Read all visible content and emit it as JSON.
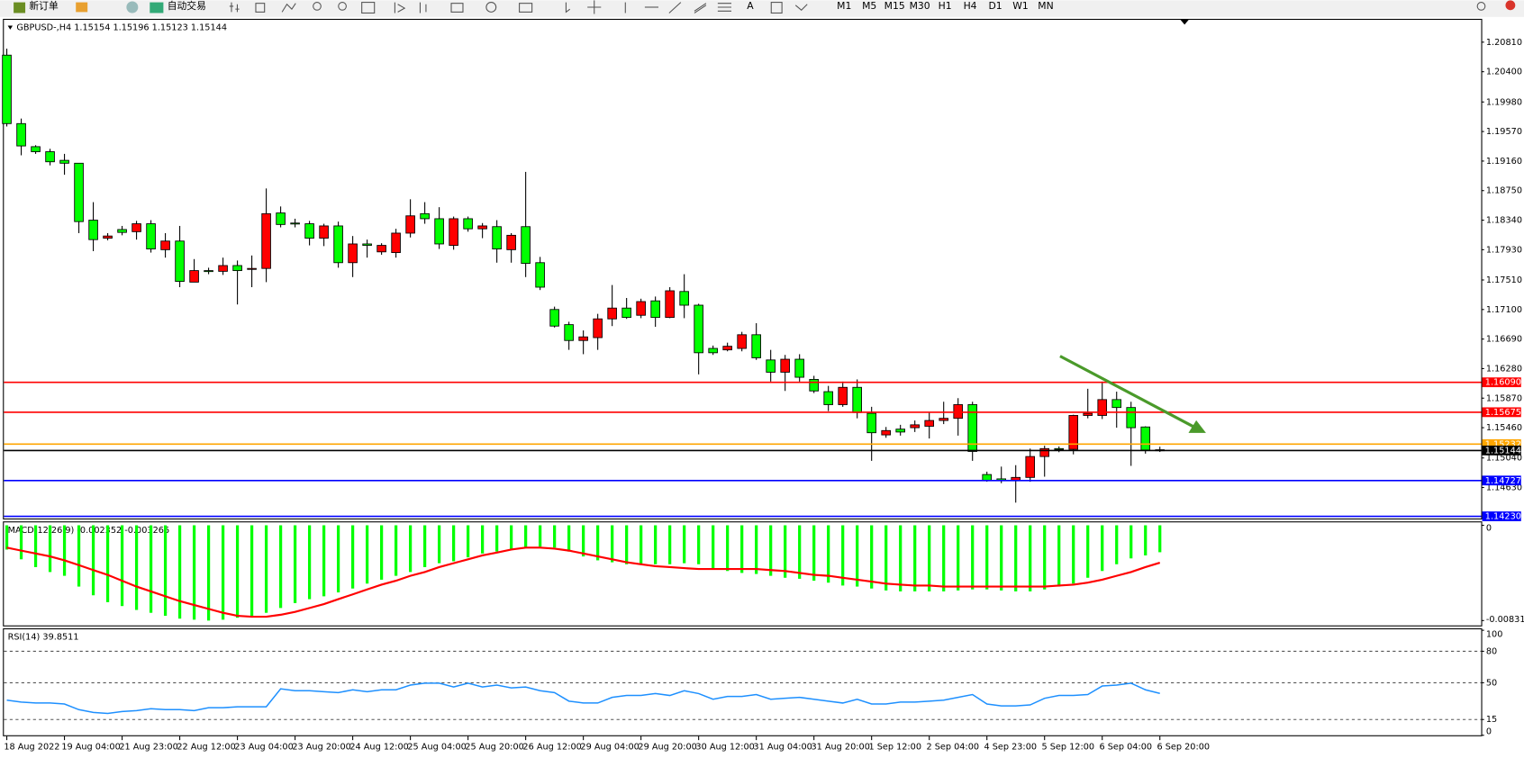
{
  "toolbar": {
    "buttons": [
      "新订单",
      "自动交易"
    ],
    "text_tool": "A",
    "timeframes": [
      "M1",
      "M5",
      "M15",
      "M30",
      "H1",
      "H4",
      "D1",
      "W1",
      "MN"
    ]
  },
  "chart_data": [
    {
      "type": "candlestick",
      "title": "GBPUSD-,H4  1.15154 1.15196 1.15123 1.15144",
      "categories": [
        "18 Aug 2022",
        null,
        null,
        null,
        "19 Aug 04:00",
        null,
        null,
        null,
        "21 Aug 23:00",
        null,
        null,
        null,
        "22 Aug 12:00",
        null,
        null,
        null,
        "23 Aug 04:00",
        null,
        null,
        null,
        "23 Aug 20:00",
        null,
        null,
        null,
        "24 Aug 12:00",
        null,
        null,
        null,
        "25 Aug 04:00",
        null,
        null,
        null,
        "25 Aug 20:00",
        null,
        null,
        null,
        "26 Aug 12:00",
        null,
        null,
        null,
        "29 Aug 04:00",
        null,
        null,
        null,
        "29 Aug 20:00",
        null,
        null,
        null,
        "30 Aug 12:00",
        null,
        null,
        null,
        "31 Aug 04:00",
        null,
        null,
        null,
        "31 Aug 20:00",
        null,
        null,
        null,
        "1 Sep 12:00",
        null,
        null,
        null,
        "2 Sep 04:00",
        null,
        null,
        null,
        "4 Sep 23:00",
        null,
        null,
        null,
        "5 Sep 12:00",
        null,
        null,
        null,
        "6 Sep 04:00",
        null,
        null,
        null,
        "6 Sep 20:00"
      ],
      "open": [
        1.2063,
        1.1968,
        1.1936,
        1.1929,
        1.1917,
        1.1913,
        1.1834,
        1.1809,
        1.1821,
        1.1818,
        1.1829,
        1.1793,
        1.1805,
        1.1748,
        1.1764,
        1.1763,
        1.1771,
        1.1766,
        1.1767,
        1.1844,
        1.183,
        1.1829,
        1.1809,
        1.1826,
        1.1775,
        1.1801,
        1.179,
        1.1789,
        1.1816,
        1.1843,
        1.1836,
        1.1799,
        1.1836,
        1.1822,
        1.1825,
        1.1793,
        1.1825,
        1.1775,
        1.171,
        1.1689,
        1.1667,
        1.1671,
        1.1697,
        1.1712,
        1.1702,
        1.1722,
        1.1699,
        1.1735,
        1.1716,
        1.1656,
        1.1654,
        1.1656,
        1.1675,
        1.164,
        1.1623,
        1.1641,
        1.1613,
        1.1596,
        1.1578,
        1.1602,
        1.1566,
        1.1536,
        1.1544,
        1.1546,
        1.1548,
        1.1556,
        1.1559,
        1.1578,
        1.1481,
        1.1475,
        1.1473,
        1.1477,
        1.1506,
        1.1517,
        1.1516,
        1.1563,
        1.1563,
        1.1585,
        1.1574,
        1.1547,
        1.15154
      ],
      "high": [
        1.2072,
        1.1975,
        1.1938,
        1.1933,
        1.1926,
        1.1913,
        1.1859,
        1.1816,
        1.1826,
        1.1833,
        1.1834,
        1.1816,
        1.1826,
        1.178,
        1.1768,
        1.1782,
        1.1778,
        1.1785,
        1.1878,
        1.1853,
        1.1836,
        1.1833,
        1.1829,
        1.1832,
        1.1812,
        1.1807,
        1.1802,
        1.1822,
        1.1863,
        1.1859,
        1.1852,
        1.1839,
        1.1839,
        1.183,
        1.1834,
        1.1816,
        1.1901,
        1.1783,
        1.1714,
        1.1693,
        1.1681,
        1.1704,
        1.1744,
        1.1726,
        1.1725,
        1.1728,
        1.1741,
        1.1759,
        1.1718,
        1.166,
        1.1664,
        1.1679,
        1.1691,
        1.1654,
        1.1647,
        1.1648,
        1.1618,
        1.1604,
        1.161,
        1.1613,
        1.1575,
        1.1547,
        1.155,
        1.1556,
        1.1567,
        1.1582,
        1.1587,
        1.1582,
        1.1485,
        1.1492,
        1.1494,
        1.1517,
        1.1521,
        1.152,
        1.1564,
        1.16,
        1.161,
        1.1596,
        1.1582,
        1.1548,
        1.15196
      ],
      "low": [
        1.1964,
        1.1924,
        1.1926,
        1.191,
        1.1897,
        1.1816,
        1.1791,
        1.1806,
        1.1813,
        1.1807,
        1.1789,
        1.1782,
        1.1741,
        1.1748,
        1.1759,
        1.1758,
        1.1717,
        1.1741,
        1.1748,
        1.1824,
        1.1824,
        1.1799,
        1.1798,
        1.1768,
        1.1755,
        1.1782,
        1.1786,
        1.1782,
        1.181,
        1.1829,
        1.1794,
        1.1793,
        1.1818,
        1.1809,
        1.1775,
        1.1775,
        1.1755,
        1.1737,
        1.1685,
        1.1654,
        1.1648,
        1.1654,
        1.1687,
        1.1697,
        1.1698,
        1.1686,
        1.1698,
        1.1698,
        1.162,
        1.1647,
        1.1652,
        1.1652,
        1.164,
        1.161,
        1.1597,
        1.161,
        1.1594,
        1.1569,
        1.1575,
        1.1559,
        1.15,
        1.1532,
        1.1535,
        1.154,
        1.1531,
        1.1551,
        1.1535,
        1.15,
        1.1471,
        1.1469,
        1.1442,
        1.1471,
        1.1478,
        1.1512,
        1.1509,
        1.1559,
        1.1558,
        1.1546,
        1.1493,
        1.151,
        1.15123
      ],
      "close": [
        1.1968,
        1.1937,
        1.1929,
        1.1915,
        1.1913,
        1.1832,
        1.1807,
        1.1812,
        1.1817,
        1.1829,
        1.1794,
        1.1805,
        1.1749,
        1.1764,
        1.1763,
        1.1771,
        1.1764,
        1.1767,
        1.1843,
        1.1828,
        1.1829,
        1.1809,
        1.1826,
        1.1775,
        1.1801,
        1.1799,
        1.1799,
        1.1816,
        1.184,
        1.1836,
        1.1801,
        1.1836,
        1.1822,
        1.1826,
        1.1794,
        1.1813,
        1.1774,
        1.1741,
        1.1687,
        1.1667,
        1.1672,
        1.1697,
        1.1712,
        1.1699,
        1.1721,
        1.1699,
        1.1736,
        1.1716,
        1.165,
        1.165,
        1.1659,
        1.1675,
        1.1643,
        1.1623,
        1.1641,
        1.1616,
        1.1597,
        1.1578,
        1.1602,
        1.1567,
        1.1539,
        1.1542,
        1.154,
        1.155,
        1.1556,
        1.1559,
        1.1578,
        1.1513,
        1.1473,
        1.1473,
        1.1477,
        1.1506,
        1.1517,
        1.1516,
        1.1563,
        1.1566,
        1.1585,
        1.1574,
        1.1546,
        1.1515,
        1.15144
      ],
      "up_color": "#ff0000",
      "down_color": "#00ff00",
      "ylim": [
        1.142,
        1.2112
      ],
      "yticks": [
        {
          "value": 1.2081,
          "label": "1.20810"
        },
        {
          "value": 1.204,
          "label": "1.20400"
        },
        {
          "value": 1.1998,
          "label": "1.19980"
        },
        {
          "value": 1.1957,
          "label": "1.19570"
        },
        {
          "value": 1.1916,
          "label": "1.19160"
        },
        {
          "value": 1.1875,
          "label": "1.18750"
        },
        {
          "value": 1.1834,
          "label": "1.18340"
        },
        {
          "value": 1.1793,
          "label": "1.17930"
        },
        {
          "value": 1.1751,
          "label": "1.17510"
        },
        {
          "value": 1.171,
          "label": "1.17100"
        },
        {
          "value": 1.1669,
          "label": "1.16690"
        },
        {
          "value": 1.1628,
          "label": "1.16280"
        },
        {
          "value": 1.1587,
          "label": "1.15870"
        },
        {
          "value": 1.1546,
          "label": "1.15460"
        },
        {
          "value": 1.1504,
          "label": "1.15040"
        },
        {
          "value": 1.1463,
          "label": "1.14630"
        }
      ],
      "hlines": [
        {
          "value": 1.1609,
          "label": "1.16090",
          "color": "#ff0000"
        },
        {
          "value": 1.15675,
          "label": "1.15675",
          "color": "#ff0000"
        },
        {
          "value": 1.15232,
          "label": "1.15232",
          "color": "#ffa500"
        },
        {
          "value": 1.15144,
          "label": "1.15144",
          "color": "#000000"
        },
        {
          "value": 1.14727,
          "label": "1.14727",
          "color": "#0000ff"
        },
        {
          "value": 1.1423,
          "label": "1.14230",
          "color": "#0000ff"
        }
      ]
    },
    {
      "type": "macd",
      "title": "MACD(12,26,9) -0.002352 -0.003266",
      "ylim": [
        -0.008317,
        0
      ],
      "yticks": [
        0,
        -0.008317
      ],
      "series": [
        {
          "kind": "bar",
          "color": "#00ff00",
          "values": [
            -0.00212,
            -0.00297,
            -0.00365,
            -0.00408,
            -0.00441,
            -0.00535,
            -0.00611,
            -0.00671,
            -0.00705,
            -0.00739,
            -0.00764,
            -0.0079,
            -0.00815,
            -0.00824,
            -0.00832,
            -0.00824,
            -0.00807,
            -0.0079,
            -0.00764,
            -0.00722,
            -0.00679,
            -0.00645,
            -0.0062,
            -0.00586,
            -0.00552,
            -0.00509,
            -0.00475,
            -0.00441,
            -0.00408,
            -0.00365,
            -0.00331,
            -0.00314,
            -0.0028,
            -0.00246,
            -0.00229,
            -0.00212,
            -0.00195,
            -0.00187,
            -0.00195,
            -0.00229,
            -0.00272,
            -0.00306,
            -0.00323,
            -0.0034,
            -0.0034,
            -0.0034,
            -0.0034,
            -0.00331,
            -0.0034,
            -0.00374,
            -0.00399,
            -0.00416,
            -0.00425,
            -0.00441,
            -0.00458,
            -0.00467,
            -0.00484,
            -0.00501,
            -0.00526,
            -0.00535,
            -0.00552,
            -0.00569,
            -0.00577,
            -0.00577,
            -0.00577,
            -0.00577,
            -0.00569,
            -0.0056,
            -0.0056,
            -0.00569,
            -0.00577,
            -0.00577,
            -0.0056,
            -0.00535,
            -0.00509,
            -0.00458,
            -0.00399,
            -0.0034,
            -0.00289,
            -0.00263,
            -0.002352
          ]
        },
        {
          "kind": "line",
          "color": "#ff0000",
          "values": [
            -0.00195,
            -0.00221,
            -0.00246,
            -0.00272,
            -0.00306,
            -0.00348,
            -0.00391,
            -0.00433,
            -0.00484,
            -0.00535,
            -0.00577,
            -0.0062,
            -0.00662,
            -0.00696,
            -0.0073,
            -0.00764,
            -0.0079,
            -0.00798,
            -0.00798,
            -0.00781,
            -0.00756,
            -0.00722,
            -0.00688,
            -0.00645,
            -0.00603,
            -0.0056,
            -0.00518,
            -0.00484,
            -0.00441,
            -0.00408,
            -0.00365,
            -0.00331,
            -0.00297,
            -0.00263,
            -0.00238,
            -0.00212,
            -0.00195,
            -0.00195,
            -0.00204,
            -0.00221,
            -0.00246,
            -0.00272,
            -0.00297,
            -0.00323,
            -0.0034,
            -0.00357,
            -0.00365,
            -0.00374,
            -0.00382,
            -0.00382,
            -0.00382,
            -0.00382,
            -0.00382,
            -0.00391,
            -0.00399,
            -0.00416,
            -0.00433,
            -0.00441,
            -0.00458,
            -0.00475,
            -0.00492,
            -0.00509,
            -0.00518,
            -0.00526,
            -0.00526,
            -0.00535,
            -0.00535,
            -0.00535,
            -0.00535,
            -0.00535,
            -0.00535,
            -0.00535,
            -0.00535,
            -0.00526,
            -0.00518,
            -0.00501,
            -0.00475,
            -0.00441,
            -0.00408,
            -0.00365,
            -0.003266
          ]
        }
      ]
    },
    {
      "type": "rsi",
      "title": "RSI(14) 39.8511",
      "ylim": [
        0,
        100
      ],
      "yticks": [
        100,
        80,
        50,
        15,
        0
      ],
      "levels": [
        80,
        50,
        15
      ],
      "color": "#1e90ff",
      "values": [
        33.4,
        31.6,
        30.7,
        30.7,
        29.8,
        24.4,
        21.7,
        20.8,
        22.6,
        23.5,
        25.3,
        24.4,
        24.4,
        23.5,
        26.2,
        26.2,
        27.1,
        27.1,
        27.1,
        44.2,
        42.4,
        42.4,
        41.5,
        40.6,
        43.3,
        41.5,
        43.3,
        43.3,
        47.8,
        49.6,
        49.6,
        46.0,
        49.6,
        46.0,
        47.8,
        45.1,
        46.0,
        42.4,
        40.6,
        32.5,
        30.7,
        30.7,
        36.1,
        37.9,
        37.9,
        39.7,
        37.9,
        42.4,
        39.7,
        34.3,
        37.0,
        37.0,
        38.8,
        34.3,
        35.2,
        36.1,
        34.3,
        32.5,
        30.7,
        34.3,
        29.8,
        29.8,
        31.6,
        31.6,
        32.5,
        33.4,
        36.1,
        38.8,
        29.8,
        28.0,
        28.0,
        28.9,
        35.2,
        37.9,
        37.9,
        38.8,
        46.9,
        47.8,
        49.6,
        43.3,
        39.8511
      ]
    }
  ]
}
